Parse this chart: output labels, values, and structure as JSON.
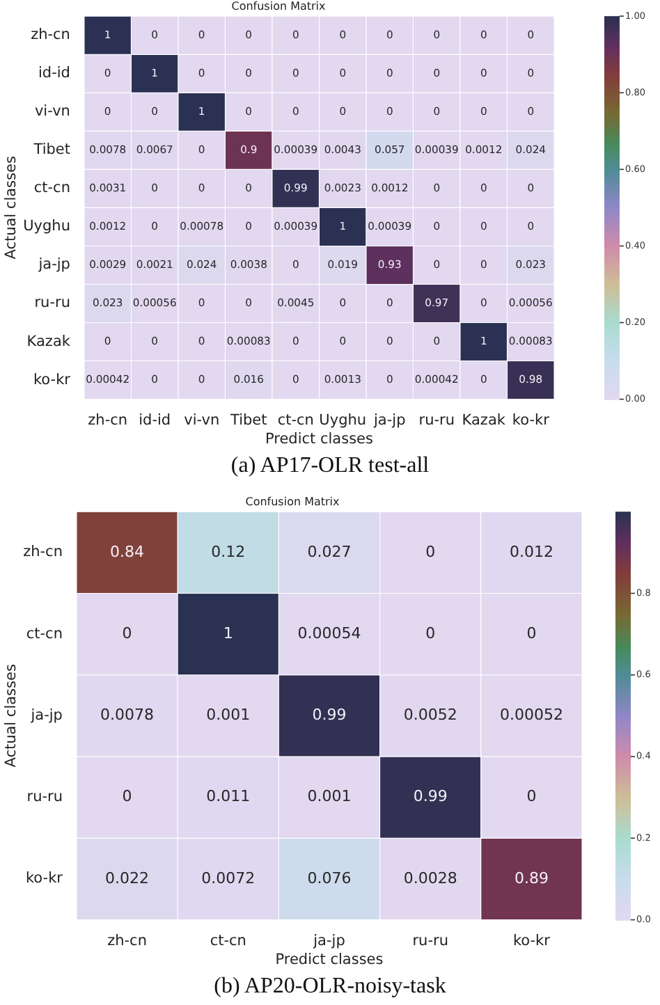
{
  "chart_data": [
    {
      "type": "heatmap",
      "title": "Confusion Matrix",
      "xlabel": "Predict classes",
      "ylabel": "Actual classes",
      "categories": [
        "zh-cn",
        "id-id",
        "vi-vn",
        "Tibet",
        "ct-cn",
        "Uyghu",
        "ja-jp",
        "ru-ru",
        "Kazak",
        "ko-kr"
      ],
      "y_categories": [
        "zh-cn",
        "id-id",
        "vi-vn",
        "Tibet",
        "ct-cn",
        "Uyghu",
        "ja-jp",
        "ru-ru",
        "Kazak",
        "ko-kr"
      ],
      "cells": [
        [
          1,
          0,
          0,
          0,
          0,
          0,
          0,
          0,
          0,
          0
        ],
        [
          0,
          1,
          0,
          0,
          0,
          0,
          0,
          0,
          0,
          0
        ],
        [
          0,
          0,
          1,
          0,
          0,
          0,
          0,
          0,
          0,
          0
        ],
        [
          0.0078,
          0.0067,
          0,
          0.9,
          0.00039,
          0.0043,
          0.057,
          0.00039,
          0.0012,
          0.024
        ],
        [
          0.0031,
          0,
          0,
          0,
          0.99,
          0.0023,
          0.0012,
          0,
          0,
          0
        ],
        [
          0.0012,
          0,
          0.00078,
          0,
          0.00039,
          1,
          0.00039,
          0,
          0,
          0
        ],
        [
          0.0029,
          0.0021,
          0.024,
          0.0038,
          0,
          0.019,
          0.93,
          0,
          0,
          0.023
        ],
        [
          0.023,
          0.00056,
          0,
          0,
          0.0045,
          0,
          0,
          0.97,
          0,
          0.00056
        ],
        [
          0,
          0,
          0,
          0.00083,
          0,
          0,
          0,
          0,
          1,
          0.00083
        ],
        [
          0.00042,
          0,
          0,
          0.016,
          0,
          0.0013,
          0,
          0.00042,
          0,
          0.98
        ]
      ],
      "clim": [
        0,
        1
      ],
      "cticks": [
        {
          "value": 0,
          "label": "0.00"
        },
        {
          "value": 0.2,
          "label": "0.20"
        },
        {
          "value": 0.4,
          "label": "0.40"
        },
        {
          "value": 0.6,
          "label": "0.60"
        },
        {
          "value": 0.8,
          "label": "0.80"
        },
        {
          "value": 1,
          "label": "1.00"
        }
      ],
      "data_labels": true,
      "annotations": [
        "(a) AP17-OLR test-all"
      ]
    },
    {
      "type": "heatmap",
      "title": "Confusion Matrix",
      "xlabel": "Predict classes",
      "ylabel": "Actual classes",
      "categories": [
        "zh-cn",
        "ct-cn",
        "ja-jp",
        "ru-ru",
        "ko-kr"
      ],
      "y_categories": [
        "zh-cn",
        "ct-cn",
        "ja-jp",
        "ru-ru",
        "ko-kr"
      ],
      "cells": [
        [
          0.84,
          0.12,
          0.027,
          0,
          0.012
        ],
        [
          0,
          1,
          0.00054,
          0,
          0
        ],
        [
          0.0078,
          0.001,
          0.99,
          0.0052,
          0.00052
        ],
        [
          0,
          0.011,
          0.001,
          0.99,
          0
        ],
        [
          0.022,
          0.0072,
          0.076,
          0.0028,
          0.89
        ]
      ],
      "clim": [
        0,
        1
      ],
      "cticks": [
        {
          "value": 0,
          "label": "0.0"
        },
        {
          "value": 0.2,
          "label": "0.2"
        },
        {
          "value": 0.4,
          "label": "0.4"
        },
        {
          "value": 0.6,
          "label": "0.6"
        },
        {
          "value": 0.8,
          "label": "0.8"
        }
      ],
      "data_labels": true,
      "annotations": [
        "(b) AP20-OLR-noisy-task"
      ]
    }
  ]
}
